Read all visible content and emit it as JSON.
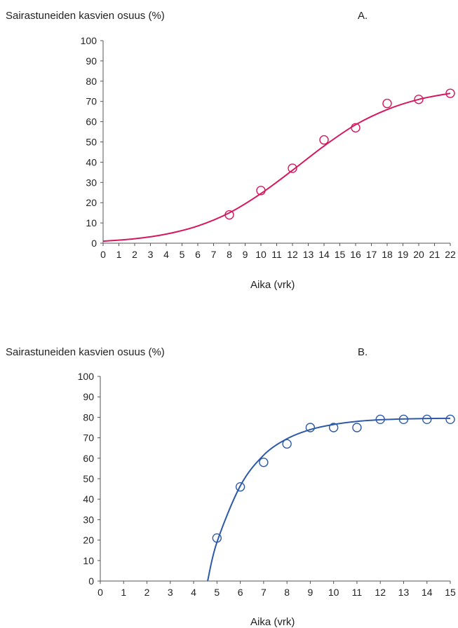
{
  "chart_data": [
    {
      "type": "scatter",
      "panel_label": "A.",
      "ylabel": "Sairastuneiden kasvien osuus (%)",
      "xlabel": "Aika (vrk)",
      "xlim": [
        0,
        22
      ],
      "ylim": [
        0,
        100
      ],
      "x_ticks": [
        "0",
        "1",
        "2",
        "3",
        "4",
        "5",
        "6",
        "7",
        "8",
        "9",
        "10",
        "11",
        "12",
        "13",
        "14",
        "15",
        "16",
        "17",
        "18",
        "19",
        "20",
        "21",
        "22"
      ],
      "y_ticks": [
        "0",
        "10",
        "20",
        "30",
        "40",
        "50",
        "60",
        "70",
        "80",
        "90",
        "100"
      ],
      "color": "#d6165e",
      "series": [
        {
          "x": [
            8,
            10,
            12,
            14,
            16,
            18,
            20,
            22
          ],
          "y": [
            14,
            26,
            37,
            51,
            57,
            69,
            71,
            74
          ]
        }
      ],
      "fit_curve": {
        "x": [
          0,
          2,
          4,
          6,
          8,
          10,
          12,
          14,
          16,
          18,
          20,
          22
        ],
        "y": [
          1,
          2.2,
          4.5,
          8.5,
          15,
          24.5,
          36,
          48,
          58.5,
          66,
          71,
          74
        ]
      },
      "grid": false
    },
    {
      "type": "scatter",
      "panel_label": "B.",
      "ylabel": "Sairastuneiden kasvien osuus (%)",
      "xlabel": "Aika (vrk)",
      "xlim": [
        0,
        15
      ],
      "ylim": [
        0,
        100
      ],
      "x_ticks": [
        "0",
        "1",
        "2",
        "3",
        "4",
        "5",
        "6",
        "7",
        "8",
        "9",
        "10",
        "11",
        "12",
        "13",
        "14",
        "15"
      ],
      "y_ticks": [
        "0",
        "10",
        "20",
        "30",
        "40",
        "50",
        "60",
        "70",
        "80",
        "90",
        "100"
      ],
      "color": "#2e59a8",
      "series": [
        {
          "x": [
            5,
            6,
            7,
            8,
            9,
            10,
            11,
            12,
            13,
            14,
            15
          ],
          "y": [
            21,
            46,
            58,
            67,
            75,
            75,
            75,
            79,
            79,
            79,
            79
          ]
        }
      ],
      "fit_curve": {
        "x": [
          4.6,
          5,
          6,
          7,
          8,
          9,
          10,
          11,
          12,
          13,
          14,
          15
        ],
        "y": [
          0,
          19,
          46.5,
          61.5,
          69.5,
          74,
          76.5,
          78,
          78.8,
          79.2,
          79.4,
          79.5
        ]
      },
      "grid": false
    }
  ]
}
